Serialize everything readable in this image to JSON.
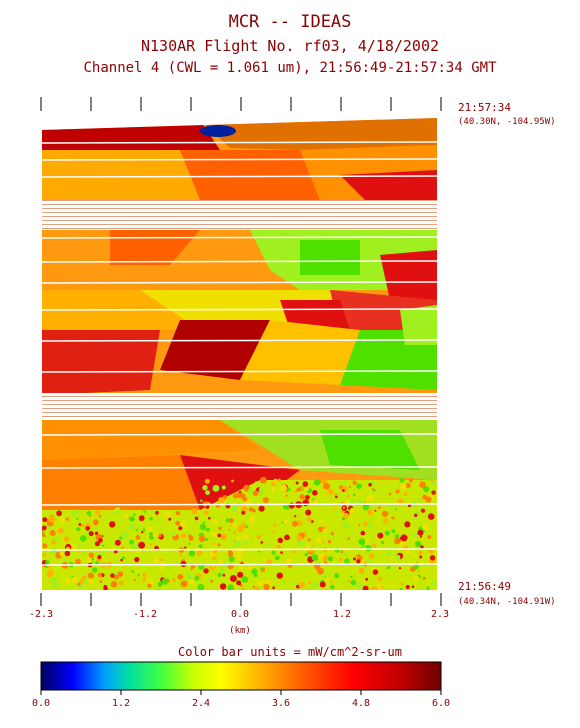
{
  "title": {
    "line1": "MCR -- IDEAS",
    "line2": "N130AR Flight No. rf03, 4/18/2002",
    "line3": "Channel 4 (CWL = 1.061 um), 21:56:49-21:57:34 GMT"
  },
  "top_time": "21:57:34",
  "top_coords": "(40.30N, -104.95W)",
  "bottom_time": "21:56:49",
  "bottom_coords": "(40.34N, -104.91W)",
  "x_ticks": [
    "-2.3",
    "-1.2",
    "0.0",
    "1.2",
    "2.3"
  ],
  "x_unit": "(km)",
  "colorbar": {
    "title": "Color bar units = mW/cm^2-sr-um",
    "ticks": [
      "0.0",
      "1.2",
      "2.4",
      "3.6",
      "4.8",
      "6.0"
    ],
    "colors": [
      "#000080",
      "#0000ff",
      "#00a0ff",
      "#00e0a0",
      "#40ff40",
      "#c8ff00",
      "#ffff00",
      "#ffb000",
      "#ff6000",
      "#ff0000",
      "#c00000",
      "#700000"
    ]
  },
  "image_palette": {
    "red": "#e01010",
    "darkred": "#b00000",
    "orange": "#ff8000",
    "yelloworange": "#ffb000",
    "yellow": "#f0e000",
    "lightgreen": "#a0f020",
    "green": "#50e000",
    "blue": "#0020a0"
  }
}
